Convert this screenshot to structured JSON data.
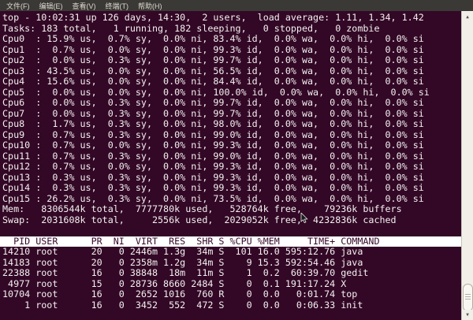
{
  "menu_bar": {
    "items": [
      {
        "label": "文件(F)"
      },
      {
        "label": "编辑(E)"
      },
      {
        "label": "查看(V)"
      },
      {
        "label": "终端(T)"
      },
      {
        "label": "帮助(H)"
      }
    ]
  },
  "terminal": {
    "top_line": "top - 10:02:31 up 126 days, 14:30,  2 users,  load average: 1.11, 1.34, 1.42",
    "tasks_line": "Tasks: 183 total,   1 running, 182 sleeping,   0 stopped,   0 zombie",
    "cpu_rows": [
      {
        "name": "Cpu0",
        "us": 15.9,
        "sy": 0.7,
        "ni": 0.0,
        "id": 83.4,
        "wa": 0.0,
        "hi": 0.0,
        "si": 0.0
      },
      {
        "name": "Cpu1",
        "us": 0.7,
        "sy": 0.0,
        "ni": 0.0,
        "id": 99.3,
        "wa": 0.0,
        "hi": 0.0,
        "si": 0.0
      },
      {
        "name": "Cpu2",
        "us": 0.0,
        "sy": 0.3,
        "ni": 0.0,
        "id": 99.7,
        "wa": 0.0,
        "hi": 0.0,
        "si": 0.0
      },
      {
        "name": "Cpu3",
        "us": 43.5,
        "sy": 0.0,
        "ni": 0.0,
        "id": 56.5,
        "wa": 0.0,
        "hi": 0.0,
        "si": 0.0
      },
      {
        "name": "Cpu4",
        "us": 15.6,
        "sy": 0.0,
        "ni": 0.0,
        "id": 84.4,
        "wa": 0.0,
        "hi": 0.0,
        "si": 0.0
      },
      {
        "name": "Cpu5",
        "us": 0.0,
        "sy": 0.0,
        "ni": 0.0,
        "id": 100.0,
        "wa": 0.0,
        "hi": 0.0,
        "si": 0.0
      },
      {
        "name": "Cpu6",
        "us": 0.0,
        "sy": 0.3,
        "ni": 0.0,
        "id": 99.7,
        "wa": 0.0,
        "hi": 0.0,
        "si": 0.0
      },
      {
        "name": "Cpu7",
        "us": 0.0,
        "sy": 0.3,
        "ni": 0.0,
        "id": 99.7,
        "wa": 0.0,
        "hi": 0.0,
        "si": 0.0
      },
      {
        "name": "Cpu8",
        "us": 1.7,
        "sy": 0.3,
        "ni": 0.0,
        "id": 98.0,
        "wa": 0.0,
        "hi": 0.0,
        "si": 0.0
      },
      {
        "name": "Cpu9",
        "us": 0.7,
        "sy": 0.3,
        "ni": 0.0,
        "id": 99.0,
        "wa": 0.0,
        "hi": 0.0,
        "si": 0.0
      },
      {
        "name": "Cpu10",
        "us": 0.7,
        "sy": 0.0,
        "ni": 0.0,
        "id": 99.3,
        "wa": 0.0,
        "hi": 0.0,
        "si": 0.0
      },
      {
        "name": "Cpu11",
        "us": 0.7,
        "sy": 0.3,
        "ni": 0.0,
        "id": 99.0,
        "wa": 0.0,
        "hi": 0.0,
        "si": 0.0
      },
      {
        "name": "Cpu12",
        "us": 0.7,
        "sy": 0.0,
        "ni": 0.0,
        "id": 99.3,
        "wa": 0.0,
        "hi": 0.0,
        "si": 0.0
      },
      {
        "name": "Cpu13",
        "us": 0.3,
        "sy": 0.3,
        "ni": 0.0,
        "id": 99.3,
        "wa": 0.0,
        "hi": 0.0,
        "si": 0.0
      },
      {
        "name": "Cpu14",
        "us": 0.3,
        "sy": 0.3,
        "ni": 0.0,
        "id": 99.3,
        "wa": 0.0,
        "hi": 0.0,
        "si": 0.0
      },
      {
        "name": "Cpu15",
        "us": 26.2,
        "sy": 0.3,
        "ni": 0.0,
        "id": 73.5,
        "wa": 0.0,
        "hi": 0.0,
        "si": 0.0
      }
    ],
    "mem_line": "Mem:   8306544k total,  7777780k used,   528764k free,    79236k buffers",
    "swap_line": "Swap:  2031608k total,     2556k used,  2029052k free,  4232836k cached",
    "process_table": {
      "columns": [
        {
          "key": "pid",
          "label": "PID",
          "width": 5,
          "align": "right"
        },
        {
          "key": "user",
          "label": "USER",
          "width": 8,
          "align": "left"
        },
        {
          "key": "pr",
          "label": "PR",
          "width": 3,
          "align": "right"
        },
        {
          "key": "ni",
          "label": "NI",
          "width": 3,
          "align": "right"
        },
        {
          "key": "virt",
          "label": "VIRT",
          "width": 5,
          "align": "right"
        },
        {
          "key": "res",
          "label": "RES",
          "width": 4,
          "align": "right"
        },
        {
          "key": "shr",
          "label": "SHR",
          "width": 4,
          "align": "right"
        },
        {
          "key": "s",
          "label": "S",
          "width": 1,
          "align": "right"
        },
        {
          "key": "cpu",
          "label": "%CPU",
          "width": 4,
          "align": "right"
        },
        {
          "key": "mem",
          "label": "%MEM",
          "width": 4,
          "align": "right"
        },
        {
          "key": "time",
          "label": "TIME+",
          "width": 9,
          "align": "right"
        },
        {
          "key": "command",
          "label": "COMMAND",
          "width": 7,
          "align": "left"
        }
      ],
      "rows": [
        {
          "pid": "14210",
          "user": "root",
          "pr": "20",
          "ni": "0",
          "virt": "2446m",
          "res": "1.3g",
          "shr": "34m",
          "s": "S",
          "cpu": "101",
          "mem": "16.0",
          "time": "595:12.76",
          "command": "java"
        },
        {
          "pid": "14183",
          "user": "root",
          "pr": "20",
          "ni": "0",
          "virt": "2358m",
          "res": "1.2g",
          "shr": "34m",
          "s": "S",
          "cpu": "9",
          "mem": "15.3",
          "time": "592:54.46",
          "command": "java"
        },
        {
          "pid": "22388",
          "user": "root",
          "pr": "16",
          "ni": "0",
          "virt": "38848",
          "res": "18m",
          "shr": "11m",
          "s": "S",
          "cpu": "1",
          "mem": "0.2",
          "time": "60:39.70",
          "command": "gedit"
        },
        {
          "pid": "4977",
          "user": "root",
          "pr": "15",
          "ni": "0",
          "virt": "28736",
          "res": "8660",
          "shr": "2484",
          "s": "S",
          "cpu": "0",
          "mem": "0.1",
          "time": "191:17.24",
          "command": "X"
        },
        {
          "pid": "10704",
          "user": "root",
          "pr": "16",
          "ni": "0",
          "virt": "2652",
          "res": "1016",
          "shr": "760",
          "s": "R",
          "cpu": "0",
          "mem": "0.0",
          "time": "0:01.74",
          "command": "top"
        },
        {
          "pid": "1",
          "user": "root",
          "pr": "16",
          "ni": "0",
          "virt": "3452",
          "res": "552",
          "shr": "472",
          "s": "S",
          "cpu": "0",
          "mem": "0.0",
          "time": "0:06.33",
          "command": "init"
        }
      ]
    }
  },
  "scrollbar": {
    "up_icon": "▲",
    "down_icon": "▼"
  },
  "colors": {
    "terminal_bg": "#330826",
    "terminal_fg": "#f4f1f0",
    "menubar_bg": "#3b3935",
    "menubar_fg": "#dcd8d0",
    "header_bg": "#ffffff",
    "header_fg": "#35092b",
    "scrollbar_track": "#f2efe9"
  }
}
